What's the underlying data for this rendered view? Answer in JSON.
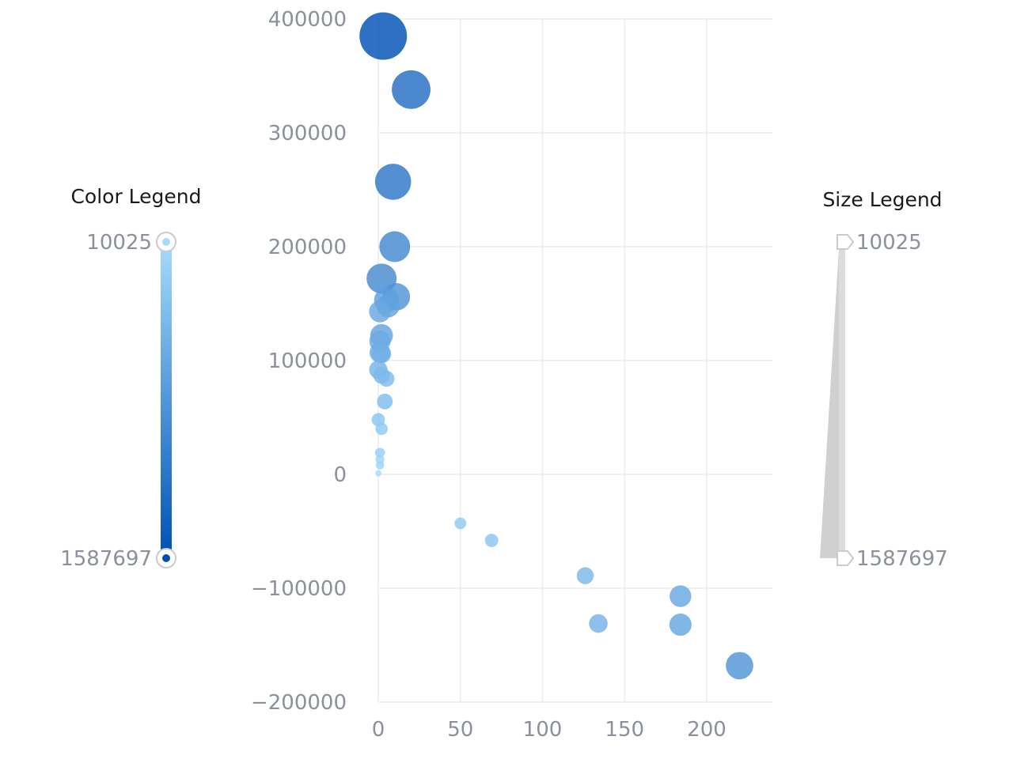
{
  "chart_data": {
    "type": "scatter",
    "title": "",
    "xlabel": "",
    "ylabel": "",
    "xlim": [
      0,
      240
    ],
    "ylim": [
      -200000,
      400000
    ],
    "x_ticks": [
      "0",
      "50",
      "100",
      "150",
      "200"
    ],
    "y_ticks": [
      "400000",
      "300000",
      "200000",
      "100000",
      "0",
      "−100000",
      "−200000"
    ],
    "grid": true,
    "color_legend": {
      "title": "Color Legend",
      "min_label": "10025",
      "max_label": "1587697",
      "min": 10025,
      "max": 1587697,
      "colors": [
        "#a6dcfb",
        "#0050b3"
      ]
    },
    "size_legend": {
      "title": "Size Legend",
      "min_label": "10025",
      "max_label": "1587697",
      "min": 10025,
      "max": 1587697
    },
    "points": [
      {
        "x": 3,
        "y": 385000,
        "value": 1587697
      },
      {
        "x": 20,
        "y": 338000,
        "value": 1250000
      },
      {
        "x": 9,
        "y": 257000,
        "value": 1150000
      },
      {
        "x": 10,
        "y": 200000,
        "value": 950000
      },
      {
        "x": 2,
        "y": 172000,
        "value": 920000
      },
      {
        "x": 11,
        "y": 156000,
        "value": 820000
      },
      {
        "x": 5,
        "y": 153000,
        "value": 720000
      },
      {
        "x": 6,
        "y": 148000,
        "value": 650000
      },
      {
        "x": 1,
        "y": 143000,
        "value": 600000
      },
      {
        "x": 2,
        "y": 122000,
        "value": 640000
      },
      {
        "x": 1,
        "y": 117000,
        "value": 580000
      },
      {
        "x": 1,
        "y": 107000,
        "value": 560000
      },
      {
        "x": 2,
        "y": 106000,
        "value": 500000
      },
      {
        "x": 0,
        "y": 92000,
        "value": 470000
      },
      {
        "x": 2,
        "y": 87000,
        "value": 410000
      },
      {
        "x": 5,
        "y": 84000,
        "value": 380000
      },
      {
        "x": 4,
        "y": 64000,
        "value": 370000
      },
      {
        "x": 0,
        "y": 48000,
        "value": 280000
      },
      {
        "x": 2,
        "y": 40000,
        "value": 240000
      },
      {
        "x": 1,
        "y": 19000,
        "value": 150000
      },
      {
        "x": 1,
        "y": 13000,
        "value": 110000
      },
      {
        "x": 1,
        "y": 8000,
        "value": 90000
      },
      {
        "x": 0,
        "y": 1000,
        "value": 10025
      },
      {
        "x": 50,
        "y": -43000,
        "value": 220000
      },
      {
        "x": 69,
        "y": -58000,
        "value": 280000
      },
      {
        "x": 126,
        "y": -89000,
        "value": 420000
      },
      {
        "x": 134,
        "y": -131000,
        "value": 480000
      },
      {
        "x": 184,
        "y": -107000,
        "value": 600000
      },
      {
        "x": 184,
        "y": -132000,
        "value": 620000
      },
      {
        "x": 220,
        "y": -168000,
        "value": 820000
      }
    ]
  }
}
